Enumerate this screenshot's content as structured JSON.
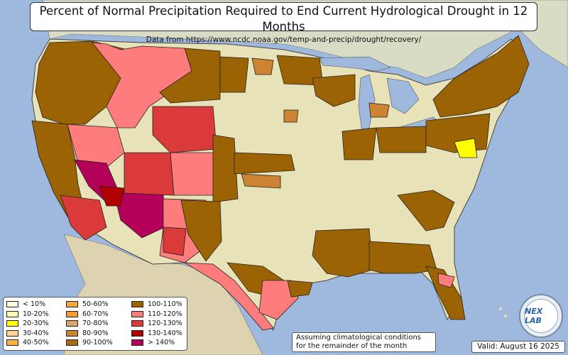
{
  "title": "Percent of Normal Precipitation Required to End Current Hydrological Drought in 12 Months",
  "subtitle": "Data from https://www.ncdc.noaa.gov/temp-and-precip/drought/recovery/",
  "note_line1": "Assuming climatological conditions",
  "note_line2": "for the remainder of the month",
  "valid": "Valid: August 16 2025",
  "logo_text": "NEX LAB",
  "colors": {
    "water": "#9fb9de",
    "land": "#e8e2b8",
    "canada": "#d9dcc4",
    "mexico": "#ddd3b0"
  },
  "legend": [
    {
      "label": "< 10%",
      "color": "#fffde0"
    },
    {
      "label": "10-20%",
      "color": "#fffbb0"
    },
    {
      "label": "20-30%",
      "color": "#ffff00"
    },
    {
      "label": "30-40%",
      "color": "#ffd59a"
    },
    {
      "label": "40-50%",
      "color": "#ffb347"
    },
    {
      "label": "50-60%",
      "color": "#f5a742"
    },
    {
      "label": "60-70%",
      "color": "#f59b2f"
    },
    {
      "label": "70-80%",
      "color": "#d9a56b"
    },
    {
      "label": "80-90%",
      "color": "#cc8433"
    },
    {
      "label": "90-100%",
      "color": "#a86b12"
    },
    {
      "label": "100-110%",
      "color": "#9b6304"
    },
    {
      "label": "110-120%",
      "color": "#ff7c7c"
    },
    {
      "label": "120-130%",
      "color": "#db3a3a"
    },
    {
      "label": "130-140%",
      "color": "#b00000"
    },
    {
      "label": "> 140%",
      "color": "#b5005a"
    }
  ]
}
